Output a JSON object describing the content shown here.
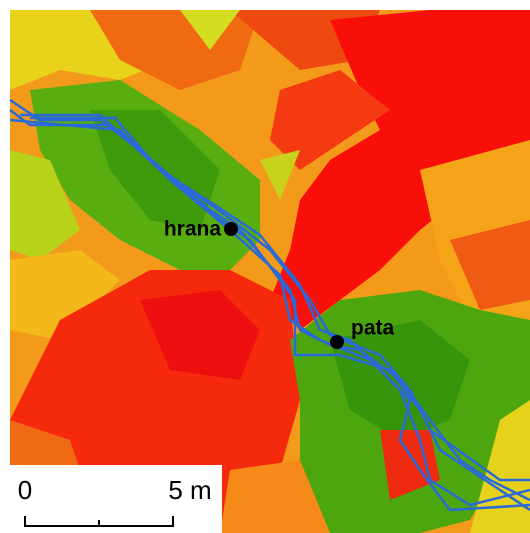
{
  "labels": [
    {
      "text": "hrana"
    },
    {
      "text": "pata"
    }
  ],
  "scale_bar": {
    "start": "0",
    "end": "5 m"
  }
}
